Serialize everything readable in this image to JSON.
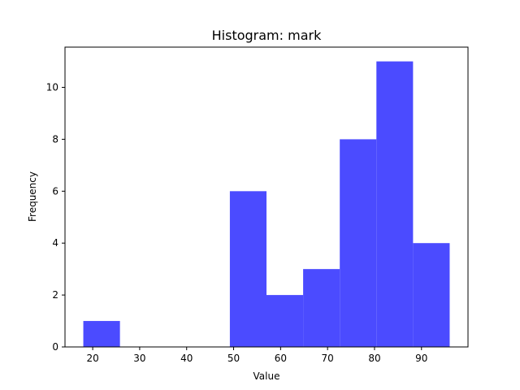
{
  "chart_data": {
    "type": "bar",
    "title": "Histogram: mark",
    "xlabel": "Value",
    "ylabel": "Frequency",
    "bin_edges": [
      18,
      25.8,
      33.6,
      41.4,
      49.2,
      57,
      64.8,
      72.6,
      80.4,
      88.2,
      96
    ],
    "values": [
      1,
      0,
      0,
      0,
      6,
      2,
      3,
      8,
      11,
      4
    ],
    "xlim": [
      14.1,
      99.9
    ],
    "ylim": [
      0,
      11.55
    ],
    "xticks": [
      20,
      30,
      40,
      50,
      60,
      70,
      80,
      90
    ],
    "yticks": [
      0,
      2,
      4,
      6,
      8,
      10
    ],
    "bar_color": "#4b4bff",
    "grid": false,
    "legend": "none"
  }
}
